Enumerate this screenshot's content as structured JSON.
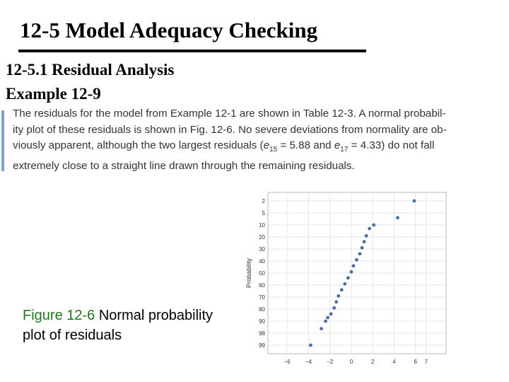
{
  "slide": {
    "title": "12-5 Model Adequacy Checking",
    "section": "12-5.1 Residual Analysis",
    "example": "Example 12-9"
  },
  "paragraph": {
    "line1": "The residuals for the model from Example 12-1 are shown in Table 12-3. A normal probabil-",
    "line2": "ity plot of these residuals is shown in Fig. 12-6. No severe deviations from normality are ob-",
    "line3_a": "viously apparent, although the two largest residuals (",
    "e15_base": "e",
    "e15_sub": "15",
    "e15_eq": " = 5.88 and ",
    "e17_base": "e",
    "e17_sub": "17",
    "e17_eq": " = 4.33) do not fall",
    "line4": "extremely close to a straight line drawn through the remaining residuals."
  },
  "caption": {
    "label": "Figure 12-6",
    "text": " Normal probability plot of residuals"
  },
  "chart_data": {
    "type": "scatter",
    "ylabel": "Probability",
    "xlabel": "",
    "x_ticks": [
      "-6",
      "-4",
      "-2",
      "0",
      "2",
      "4",
      "6",
      "7"
    ],
    "y_ticks": [
      "2",
      "5",
      "10",
      "20",
      "30",
      "40",
      "50",
      "60",
      "70",
      "80",
      "90",
      "98",
      "99"
    ],
    "xlim": [
      -6.5,
      7.5
    ],
    "ylim": [
      1,
      99.5
    ],
    "y_scale": "normal-probability",
    "grid": true,
    "points": [
      {
        "x": 5.88,
        "y": 2
      },
      {
        "x": 4.33,
        "y": 7
      },
      {
        "x": 2.1,
        "y": 10
      },
      {
        "x": 1.7,
        "y": 13
      },
      {
        "x": 1.4,
        "y": 19
      },
      {
        "x": 1.2,
        "y": 24
      },
      {
        "x": 1.0,
        "y": 29
      },
      {
        "x": 0.8,
        "y": 34
      },
      {
        "x": 0.5,
        "y": 39
      },
      {
        "x": 0.2,
        "y": 44
      },
      {
        "x": 0.0,
        "y": 49
      },
      {
        "x": -0.3,
        "y": 54
      },
      {
        "x": -0.6,
        "y": 59
      },
      {
        "x": -0.9,
        "y": 64
      },
      {
        "x": -1.2,
        "y": 69
      },
      {
        "x": -1.4,
        "y": 74
      },
      {
        "x": -1.6,
        "y": 79
      },
      {
        "x": -1.9,
        "y": 84
      },
      {
        "x": -2.2,
        "y": 87
      },
      {
        "x": -2.4,
        "y": 90
      },
      {
        "x": -2.8,
        "y": 95
      },
      {
        "x": -3.8,
        "y": 99
      }
    ]
  }
}
